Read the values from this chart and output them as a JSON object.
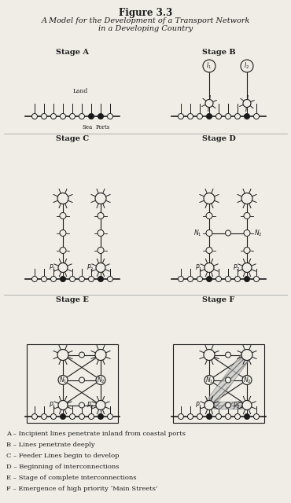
{
  "title": "Figure 3.3",
  "subtitle": "A Model for the Development of a Transport Network\nin a Developing Country",
  "legend_items": [
    "A – Incipient lines penetrate inland from coastal ports",
    "B – Lines penetrate deeply",
    "C – Feeder Lines begin to develop",
    "D – Beginning of interconnections",
    "E – Stage of complete interconnections",
    "F – Emergence of high priority ‘Main Streets’"
  ],
  "bg_color": "#f0ede6",
  "line_color": "#1a1a1a",
  "circle_fc": "#f0ede6",
  "circle_ec": "#1a1a1a",
  "filled_circle_fc": "#1a1a1a"
}
